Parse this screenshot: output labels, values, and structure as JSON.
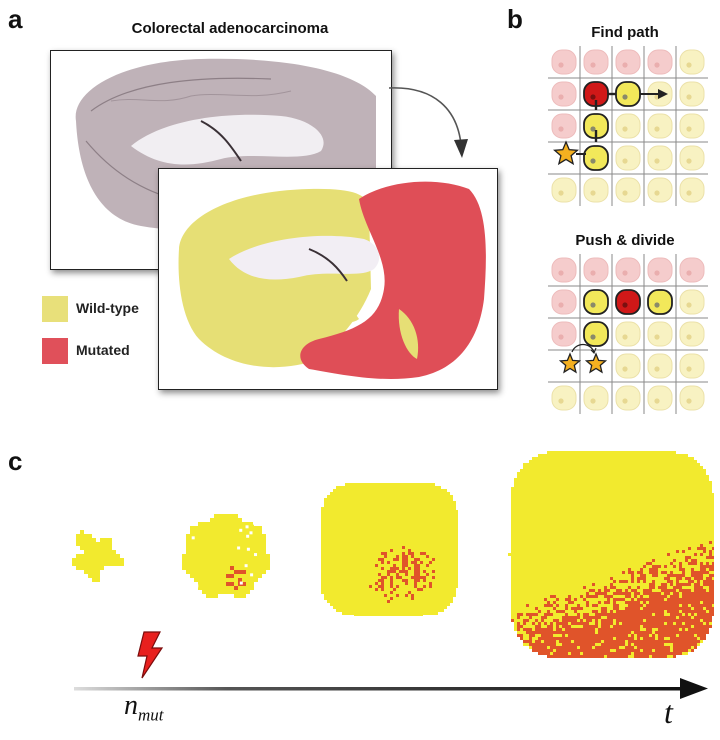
{
  "panel_a": {
    "letter": "a",
    "title": "Colorectal adenocarcinoma",
    "legend": [
      {
        "label": "Wild-type",
        "color": "#e8e07a"
      },
      {
        "label": "Mutated",
        "color": "#e0505a"
      }
    ]
  },
  "panel_b": {
    "letter": "b",
    "find_path_title": "Find path",
    "push_divide_title": "Push & divide"
  },
  "panel_c": {
    "letter": "c",
    "n_label": "n",
    "n_subscript": "mut",
    "t_label": "t"
  },
  "colors": {
    "wildtype": "#f2ea2e",
    "mutant": "#e0542a",
    "cell_pink": "#f4c4c4",
    "cell_yellow": "#f7f0b8",
    "cell_red": "#d01818",
    "star": "#f4b020",
    "bolt": "#e8201e"
  }
}
